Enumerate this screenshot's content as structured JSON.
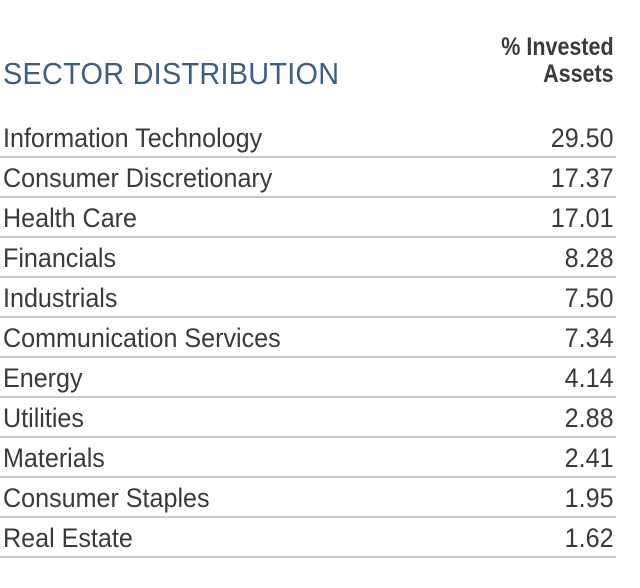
{
  "header": {
    "title": "SECTOR DISTRIBUTION",
    "column_line1": "% Invested",
    "column_line2": "Assets"
  },
  "rows": [
    {
      "sector": "Information Technology",
      "value": "29.50"
    },
    {
      "sector": "Consumer Discretionary",
      "value": "17.37"
    },
    {
      "sector": "Health Care",
      "value": "17.01"
    },
    {
      "sector": "Financials",
      "value": "8.28"
    },
    {
      "sector": "Industrials",
      "value": "7.50"
    },
    {
      "sector": "Communication Services",
      "value": "7.34"
    },
    {
      "sector": "Energy",
      "value": "4.14"
    },
    {
      "sector": "Utilities",
      "value": "2.88"
    },
    {
      "sector": "Materials",
      "value": "2.41"
    },
    {
      "sector": "Consumer Staples",
      "value": "1.95"
    },
    {
      "sector": "Real Estate",
      "value": "1.62"
    }
  ],
  "colors": {
    "title": "#3b5e82",
    "text": "#3a3a3a",
    "rule": "#c8c8c8"
  }
}
